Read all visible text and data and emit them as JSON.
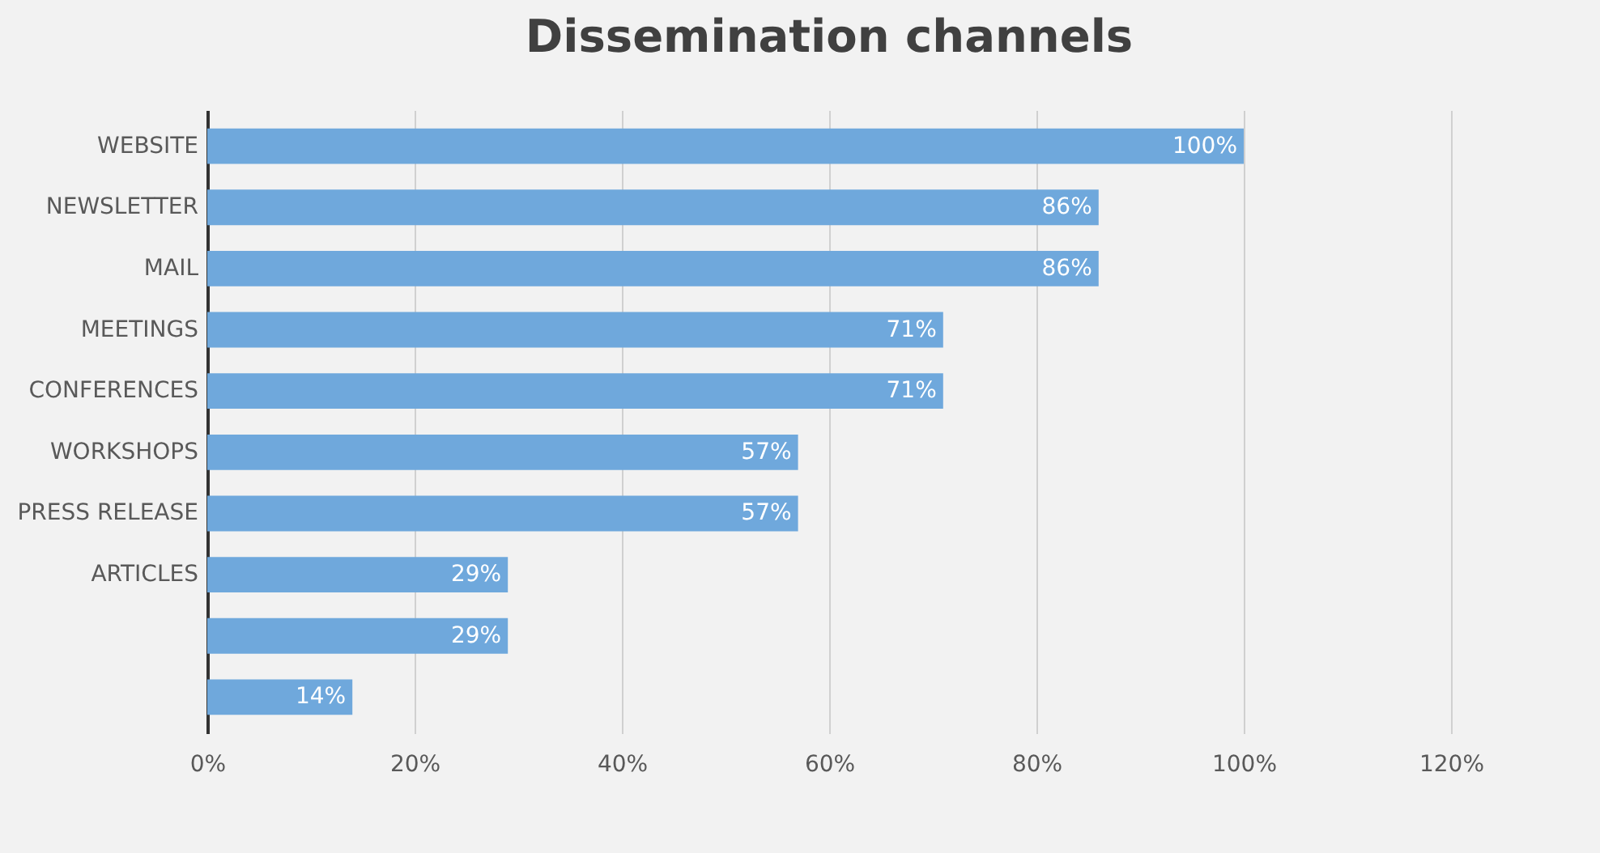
{
  "chart_data": {
    "type": "bar",
    "orientation": "horizontal",
    "title": "Dissemination channels",
    "categories": [
      "WEBSITE",
      "NEWSLETTER",
      "MAIL",
      "MEETINGS",
      "CONFERENCES",
      "WORKSHOPS",
      "PRESS RELEASE",
      "ARTICLES",
      null,
      null
    ],
    "values": [
      100,
      86,
      86,
      71,
      71,
      57,
      57,
      29,
      29,
      14
    ],
    "value_labels": [
      "100%",
      "86%",
      "86%",
      "71%",
      "71%",
      "57%",
      "57%",
      "29%",
      "29%",
      "14%"
    ],
    "color": "#6fa8dc",
    "xlim": [
      0,
      120
    ],
    "xticks": [
      {
        "value": 0,
        "label": "0%"
      },
      {
        "value": 20,
        "label": "20%"
      },
      {
        "value": 40,
        "label": "40%"
      },
      {
        "value": 60,
        "label": "60%"
      },
      {
        "value": 80,
        "label": "80%"
      },
      {
        "value": 100,
        "label": "100%"
      },
      {
        "value": 120,
        "label": "120%"
      }
    ],
    "grid": "x"
  }
}
